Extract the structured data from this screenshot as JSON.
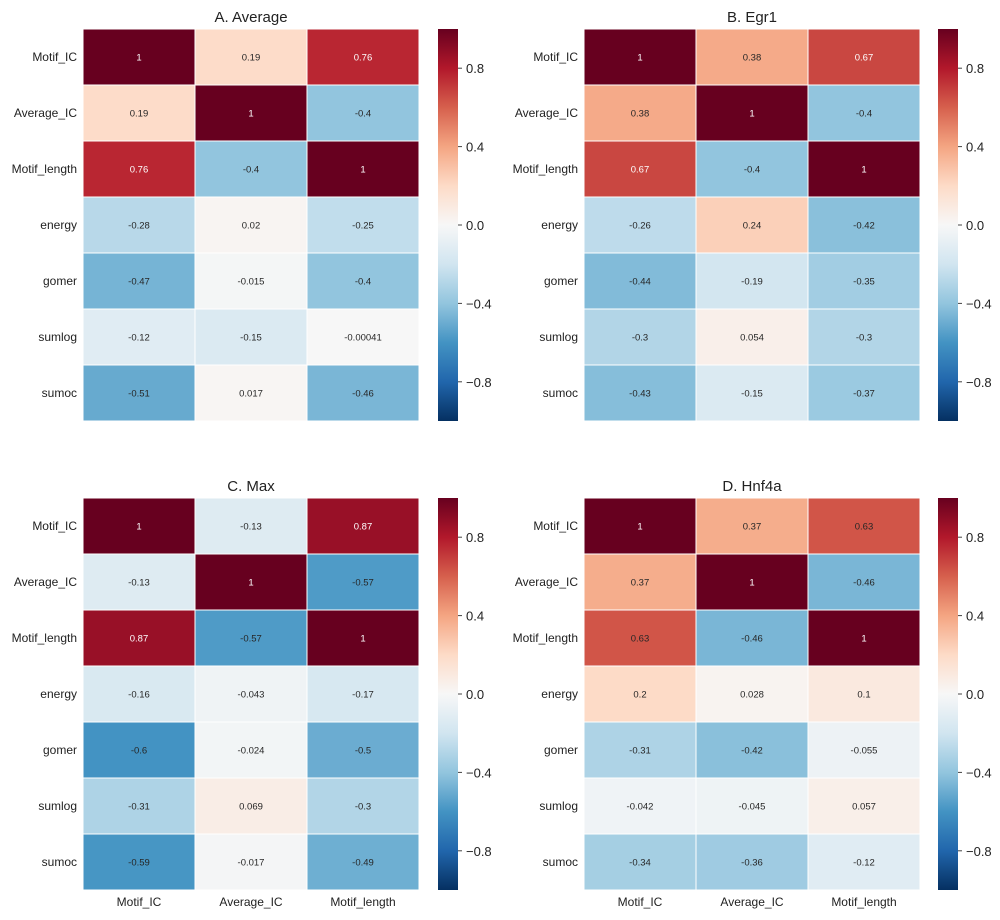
{
  "figure": {
    "color_scale": {
      "min": -1.0,
      "max": 1.0,
      "colors": [
        "#053061",
        "#2166ac",
        "#4393c3",
        "#92c5de",
        "#d1e5f0",
        "#f7f7f7",
        "#fddbc7",
        "#f4a582",
        "#d6604d",
        "#b2182b",
        "#67001f"
      ]
    },
    "colorbar_ticks": [
      0.8,
      0.4,
      0.0,
      -0.4,
      -0.8
    ],
    "colorbar_tick_labels": [
      "0.8",
      "0.4",
      "0.0",
      "−0.4",
      "−0.8"
    ]
  },
  "chart_data": [
    {
      "type": "heatmap",
      "title": "A.  Average",
      "rows": [
        "Motif_IC",
        "Average_IC",
        "Motif_length",
        "energy",
        "gomer",
        "sumlog",
        "sumoc"
      ],
      "cols": [
        "Motif_IC",
        "Average_IC",
        "Motif_length"
      ],
      "values": [
        [
          1,
          0.19,
          0.76
        ],
        [
          0.19,
          1,
          -0.4
        ],
        [
          0.76,
          -0.4,
          1
        ],
        [
          -0.28,
          0.02,
          -0.25
        ],
        [
          -0.47,
          -0.015,
          -0.4
        ],
        [
          -0.12,
          -0.15,
          -0.00041
        ],
        [
          -0.51,
          0.017,
          -0.46
        ]
      ],
      "labels": [
        [
          "1",
          "0.19",
          "0.76"
        ],
        [
          "0.19",
          "1",
          "-0.4"
        ],
        [
          "0.76",
          "-0.4",
          "1"
        ],
        [
          "-0.28",
          "0.02",
          "-0.25"
        ],
        [
          "-0.47",
          "-0.015",
          "-0.4"
        ],
        [
          "-0.12",
          "-0.15",
          "-0.00041"
        ],
        [
          "-0.51",
          "0.017",
          "-0.46"
        ]
      ],
      "show_col_labels": false
    },
    {
      "type": "heatmap",
      "title": "B.  Egr1",
      "rows": [
        "Motif_IC",
        "Average_IC",
        "Motif_length",
        "energy",
        "gomer",
        "sumlog",
        "sumoc"
      ],
      "cols": [
        "Motif_IC",
        "Average_IC",
        "Motif_length"
      ],
      "values": [
        [
          1,
          0.38,
          0.67
        ],
        [
          0.38,
          1,
          -0.4
        ],
        [
          0.67,
          -0.4,
          1
        ],
        [
          -0.26,
          0.24,
          -0.42
        ],
        [
          -0.44,
          -0.19,
          -0.35
        ],
        [
          -0.3,
          0.054,
          -0.3
        ],
        [
          -0.43,
          -0.15,
          -0.37
        ]
      ],
      "labels": [
        [
          "1",
          "0.38",
          "0.67"
        ],
        [
          "0.38",
          "1",
          "-0.4"
        ],
        [
          "0.67",
          "-0.4",
          "1"
        ],
        [
          "-0.26",
          "0.24",
          "-0.42"
        ],
        [
          "-0.44",
          "-0.19",
          "-0.35"
        ],
        [
          "-0.3",
          "0.054",
          "-0.3"
        ],
        [
          "-0.43",
          "-0.15",
          "-0.37"
        ]
      ],
      "show_col_labels": false
    },
    {
      "type": "heatmap",
      "title": "C.  Max",
      "rows": [
        "Motif_IC",
        "Average_IC",
        "Motif_length",
        "energy",
        "gomer",
        "sumlog",
        "sumoc"
      ],
      "cols": [
        "Motif_IC",
        "Average_IC",
        "Motif_length"
      ],
      "values": [
        [
          1,
          -0.13,
          0.87
        ],
        [
          -0.13,
          1,
          -0.57
        ],
        [
          0.87,
          -0.57,
          1
        ],
        [
          -0.16,
          -0.043,
          -0.17
        ],
        [
          -0.6,
          -0.024,
          -0.5
        ],
        [
          -0.31,
          0.069,
          -0.3
        ],
        [
          -0.59,
          -0.017,
          -0.49
        ]
      ],
      "labels": [
        [
          "1",
          "-0.13",
          "0.87"
        ],
        [
          "-0.13",
          "1",
          "-0.57"
        ],
        [
          "0.87",
          "-0.57",
          "1"
        ],
        [
          "-0.16",
          "-0.043",
          "-0.17"
        ],
        [
          "-0.6",
          "-0.024",
          "-0.5"
        ],
        [
          "-0.31",
          "0.069",
          "-0.3"
        ],
        [
          "-0.59",
          "-0.017",
          "-0.49"
        ]
      ],
      "show_col_labels": true
    },
    {
      "type": "heatmap",
      "title": "D.  Hnf4a",
      "rows": [
        "Motif_IC",
        "Average_IC",
        "Motif_length",
        "energy",
        "gomer",
        "sumlog",
        "sumoc"
      ],
      "cols": [
        "Motif_IC",
        "Average_IC",
        "Motif_length"
      ],
      "values": [
        [
          1,
          0.37,
          0.63
        ],
        [
          0.37,
          1,
          -0.46
        ],
        [
          0.63,
          -0.46,
          1
        ],
        [
          0.2,
          0.028,
          0.1
        ],
        [
          -0.31,
          -0.42,
          -0.055
        ],
        [
          -0.042,
          -0.045,
          0.057
        ],
        [
          -0.34,
          -0.36,
          -0.12
        ]
      ],
      "labels": [
        [
          "1",
          "0.37",
          "0.63"
        ],
        [
          "0.37",
          "1",
          "-0.46"
        ],
        [
          "0.63",
          "-0.46",
          "1"
        ],
        [
          "0.2",
          "0.028",
          "0.1"
        ],
        [
          "-0.31",
          "-0.42",
          "-0.055"
        ],
        [
          "-0.042",
          "-0.045",
          "0.057"
        ],
        [
          "-0.34",
          "-0.36",
          "-0.12"
        ]
      ],
      "show_col_labels": true
    }
  ]
}
